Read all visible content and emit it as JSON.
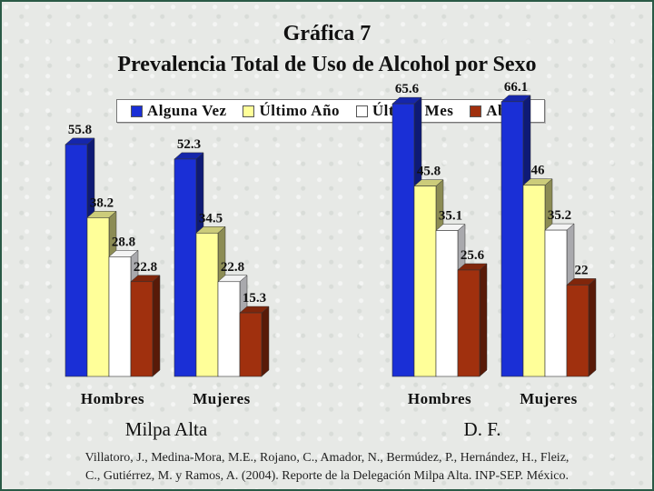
{
  "chart_data": {
    "type": "bar",
    "title": "Gráfica 7",
    "subtitle": "Prevalencia Total de Uso de Alcohol por Sexo",
    "series_names": [
      "Alguna Vez",
      "Último Año",
      "Último Mes",
      "Abuso"
    ],
    "colors": [
      "#1a2fd6",
      "#ffff99",
      "#ffffff",
      "#a0300e"
    ],
    "ylim": [
      0,
      70
    ],
    "grid": false,
    "legend_position": "top",
    "panels": [
      {
        "name": "Milpa Alta",
        "categories": [
          "Hombres",
          "Mujeres"
        ],
        "series": [
          {
            "name": "Alguna Vez",
            "values": [
              55.8,
              52.3
            ]
          },
          {
            "name": "Último Año",
            "values": [
              38.2,
              34.5
            ]
          },
          {
            "name": "Último Mes",
            "values": [
              28.8,
              22.8
            ]
          },
          {
            "name": "Abuso",
            "values": [
              22.8,
              15.3
            ]
          }
        ]
      },
      {
        "name": "D. F.",
        "categories": [
          "Hombres",
          "Mujeres"
        ],
        "series": [
          {
            "name": "Alguna Vez",
            "values": [
              65.6,
              66.1
            ]
          },
          {
            "name": "Último Año",
            "values": [
              45.8,
              46
            ]
          },
          {
            "name": "Último Mes",
            "values": [
              35.1,
              35.2
            ]
          },
          {
            "name": "Abuso",
            "values": [
              25.6,
              22
            ]
          }
        ]
      }
    ]
  },
  "source": {
    "line1": "Villatoro, J., Medina-Mora, M.E., Rojano, C., Amador, N., Bermúdez, P., Hernández, H., Fleiz,",
    "line2": "C., Gutiérrez, M. y Ramos, A. (2004). Reporte de la Delegación Milpa Alta. INP-SEP. México."
  }
}
